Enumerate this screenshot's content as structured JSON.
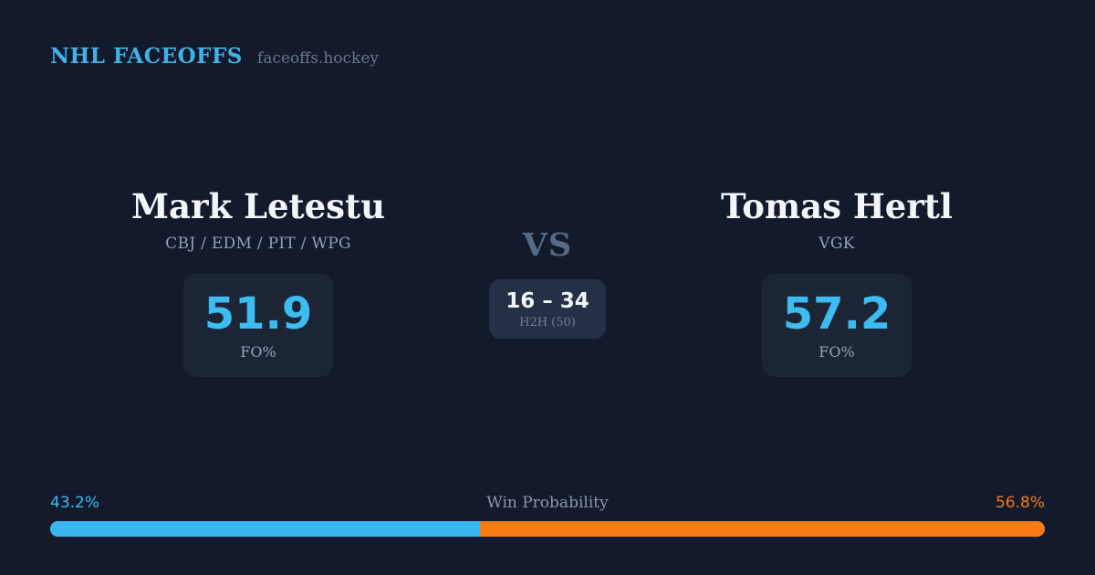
{
  "header": {
    "title": "NHL FACEOFFS",
    "site": "faceoffs.hockey"
  },
  "players": [
    {
      "name": "Mark Letestu",
      "teams": "CBJ / EDM / PIT / WPG",
      "fo_pct": "51.9",
      "fo_label": "FO%"
    },
    {
      "name": "Tomas Hertl",
      "teams": "VGK",
      "fo_pct": "57.2",
      "fo_label": "FO%"
    }
  ],
  "matchup": {
    "vs_label": "VS",
    "h2h_score": "16 – 34",
    "h2h_sub": "H2H (50)"
  },
  "win_probability": {
    "title": "Win Probability",
    "left_label": "43.2%",
    "right_label": "56.8%",
    "left_value": 43.2,
    "right_value": 56.8
  },
  "colors": {
    "background": "#121A2B",
    "accent_blue": "#3CBCF1",
    "accent_orange": "#F5791B",
    "card_dark": "#1C2535",
    "card_light": "#253047"
  },
  "chart_data": {
    "type": "bar",
    "title": "Win Probability",
    "categories": [
      "Mark Letestu",
      "Tomas Hertl"
    ],
    "series": [
      {
        "name": "FO%",
        "values": [
          51.9,
          57.2
        ]
      },
      {
        "name": "Win Probability %",
        "values": [
          43.2,
          56.8
        ]
      },
      {
        "name": "H2H faceoff wins (of 50)",
        "values": [
          16,
          34
        ]
      }
    ],
    "legend_position": "none",
    "xlabel": "",
    "ylabel": ""
  }
}
